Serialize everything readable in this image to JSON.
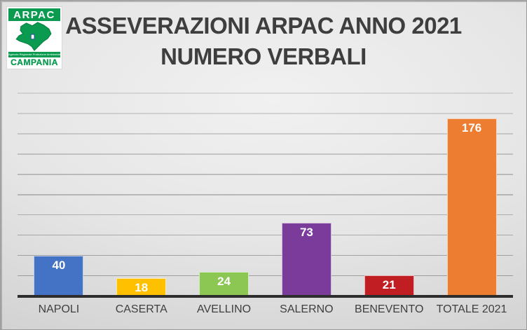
{
  "logo": {
    "brand": "ARPAC",
    "agency_line": "Agenzia Regionale Protezione Ambientale",
    "region": "CAMPANIA",
    "green": "#0a9b50"
  },
  "title": {
    "line1": "ASSEVERAZIONI ARPAC ANNO 2021",
    "line2": "NUMERO VERBALI"
  },
  "chart_data": {
    "type": "bar",
    "title": "ASSEVERAZIONI ARPAC ANNO 2021 NUMERO VERBALI",
    "categories": [
      "NAPOLI",
      "CASERTA",
      "AVELLINO",
      "SALERNO",
      "BENEVENTO",
      "TOTALE 2021"
    ],
    "values": [
      40,
      18,
      24,
      73,
      21,
      176
    ],
    "bar_colors": [
      "#4472C4",
      "#FFC000",
      "#8CC653",
      "#7A3B9B",
      "#C01E22",
      "#ED7D31"
    ],
    "xlabel": "",
    "ylabel": "",
    "ylim": [
      0,
      200
    ],
    "gridline_step": 20,
    "grid": true,
    "legend": "none",
    "y_axis_labels": "hidden",
    "value_labels": "inside-end white bold",
    "axis_color": "#2d2d2d",
    "label_color": "#3f3f3f"
  }
}
